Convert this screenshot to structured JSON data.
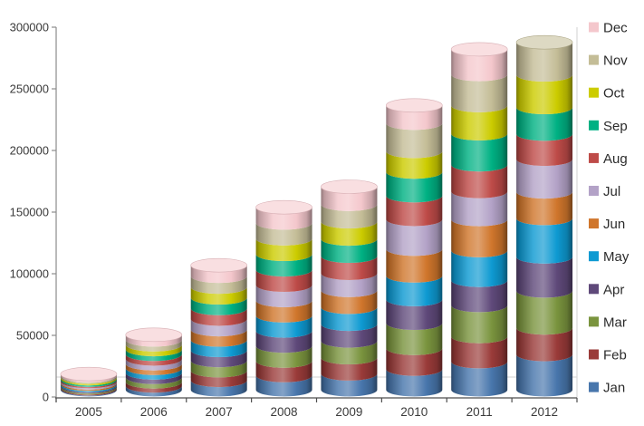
{
  "page": {
    "background": "#FFFFFF"
  },
  "chart_data": {
    "type": "bar",
    "subtype": "3d-stacked-cylinder",
    "title": "",
    "xlabel": "",
    "ylabel": "",
    "categories": [
      "2005",
      "2006",
      "2007",
      "2008",
      "2009",
      "2010",
      "2011",
      "2012"
    ],
    "series": [
      {
        "name": "Jan",
        "color": "#4876AC",
        "values": [
          800,
          3200,
          7800,
          11800,
          13200,
          17100,
          23300,
          29200
        ]
      },
      {
        "name": "Feb",
        "color": "#9A3B39",
        "values": [
          850,
          3400,
          8000,
          12000,
          13400,
          17200,
          20800,
          22000
        ]
      },
      {
        "name": "Mar",
        "color": "#7A943E",
        "values": [
          950,
          3700,
          8400,
          12400,
          13800,
          20800,
          25700,
          30600
        ]
      },
      {
        "name": "Apr",
        "color": "#5F497A",
        "values": [
          1000,
          3700,
          8400,
          12500,
          13900,
          19600,
          20800,
          28200
        ]
      },
      {
        "name": "May",
        "color": "#0E9AD2",
        "values": [
          1050,
          3800,
          8600,
          12600,
          14000,
          19600,
          24600,
          31800
        ]
      },
      {
        "name": "Jun",
        "color": "#D0762C",
        "values": [
          1100,
          3800,
          8600,
          12600,
          14000,
          22100,
          25700,
          22000
        ]
      },
      {
        "name": "Jul",
        "color": "#B3A2C7",
        "values": [
          1100,
          3900,
          8700,
          12700,
          14100,
          24600,
          23200,
          27000
        ]
      },
      {
        "name": "Aug",
        "color": "#BE4B48",
        "values": [
          1150,
          3900,
          8800,
          12700,
          14200,
          19600,
          22100,
          20800
        ]
      },
      {
        "name": "Sep",
        "color": "#00B183",
        "values": [
          1200,
          3900,
          8800,
          12800,
          14200,
          19600,
          25700,
          22000
        ]
      },
      {
        "name": "Oct",
        "color": "#CCCC00",
        "values": [
          1250,
          4000,
          8900,
          12900,
          14300,
          17100,
          23300,
          27000
        ]
      },
      {
        "name": "Nov",
        "color": "#C4BD97",
        "values": [
          1250,
          4000,
          9000,
          13000,
          14400,
          23300,
          25700,
          26900
        ]
      },
      {
        "name": "Dec",
        "color": "#F4C7CC",
        "values": [
          1300,
          4200,
          9000,
          13000,
          14500,
          14700,
          20800,
          0
        ]
      }
    ],
    "ylim": [
      0,
      300000
    ],
    "ytick_step": 50000,
    "yticks": [
      "0",
      "50000",
      "100000",
      "150000",
      "200000",
      "250000",
      "300000"
    ],
    "grid": false,
    "legend": {
      "position": "right",
      "top_to_bottom": [
        "Dec",
        "Nov",
        "Oct",
        "Sep",
        "Aug",
        "Jul",
        "Jun",
        "May",
        "Apr",
        "Mar",
        "Feb",
        "Jan"
      ]
    },
    "colors": {
      "axis_left": "#8C8C8C",
      "axis_bottom": "#4D4D4D",
      "wall": "#D9D9D9",
      "floor_edge": "#D9D9D9",
      "text": "#3A3A3A"
    }
  }
}
